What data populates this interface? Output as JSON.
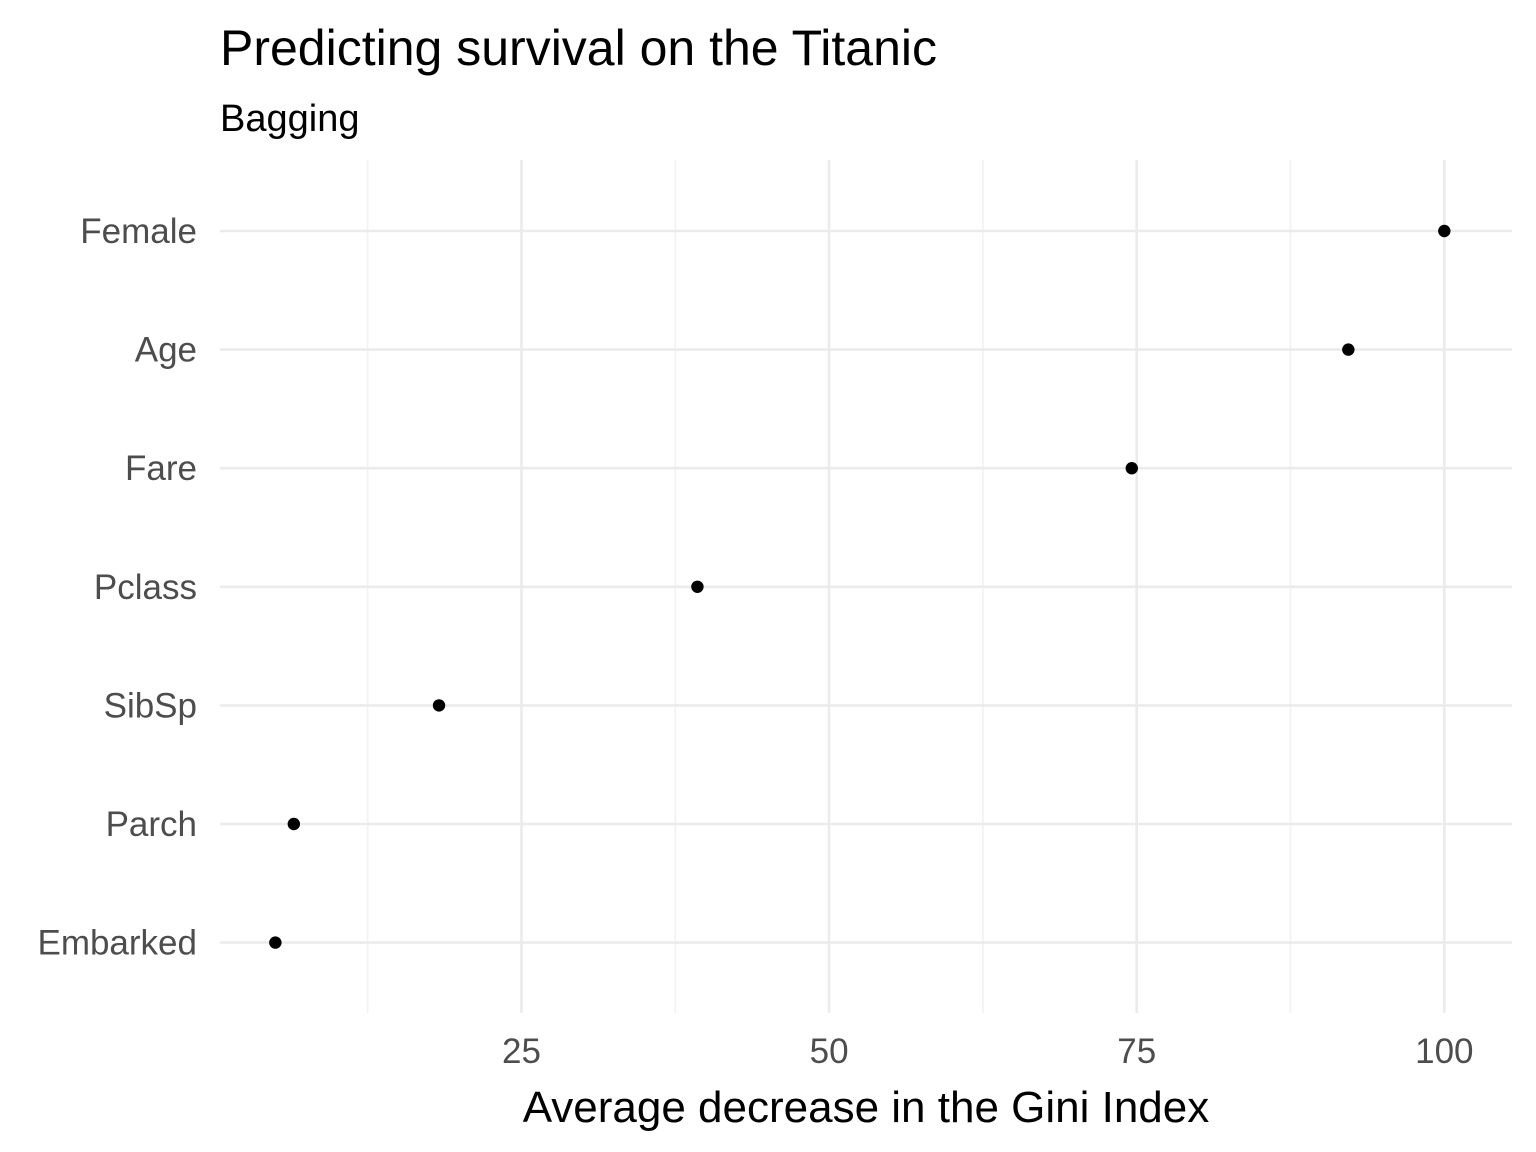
{
  "chart_data": {
    "type": "scatter",
    "title": "Predicting survival on the Titanic",
    "subtitle": "Bagging",
    "xlabel": "Average decrease in the Gini Index",
    "ylabel": "",
    "xlim": [
      0.5,
      105.5
    ],
    "x_ticks": [
      25,
      50,
      75,
      100
    ],
    "x_tick_labels": [
      "25",
      "50",
      "75",
      "100"
    ],
    "categories": [
      "Female",
      "Age",
      "Fare",
      "Pclass",
      "SibSp",
      "Parch",
      "Embarked"
    ],
    "values": [
      100,
      92.2,
      74.6,
      39.3,
      18.3,
      6.5,
      5.0
    ],
    "grid": true,
    "legend": "none",
    "colors": {
      "point": "#000000",
      "grid_major": "#ebebeb",
      "grid_minor": "#f2f2f2",
      "tick_text": "#4d4d4d"
    }
  }
}
